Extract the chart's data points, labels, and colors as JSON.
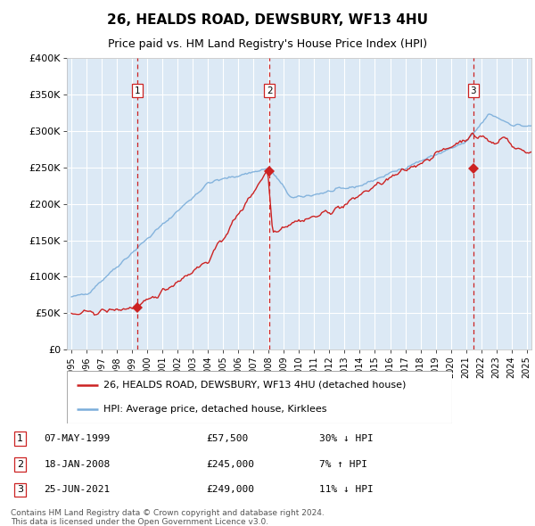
{
  "title": "26, HEALDS ROAD, DEWSBURY, WF13 4HU",
  "subtitle": "Price paid vs. HM Land Registry's House Price Index (HPI)",
  "hpi_label": "HPI: Average price, detached house, Kirklees",
  "price_label": "26, HEALDS ROAD, DEWSBURY, WF13 4HU (detached house)",
  "footer1": "Contains HM Land Registry data © Crown copyright and database right 2024.",
  "footer2": "This data is licensed under the Open Government Licence v3.0.",
  "sales": [
    {
      "num": 1,
      "date": "07-MAY-1999",
      "year": 1999.35,
      "price": 57500,
      "hpi_rel": "30% ↓ HPI"
    },
    {
      "num": 2,
      "date": "18-JAN-2008",
      "year": 2008.05,
      "price": 245000,
      "hpi_rel": "7% ↑ HPI"
    },
    {
      "num": 3,
      "date": "25-JUN-2021",
      "year": 2021.48,
      "price": 249000,
      "hpi_rel": "11% ↓ HPI"
    }
  ],
  "ylim": [
    0,
    400000
  ],
  "yticks": [
    0,
    50000,
    100000,
    150000,
    200000,
    250000,
    300000,
    350000,
    400000
  ],
  "xlim_start": 1994.7,
  "xlim_end": 2025.3,
  "hpi_color": "#7aadda",
  "price_color": "#cc2222",
  "bg_color": "#dce9f5",
  "plot_bg": "#f0f4fa",
  "grid_color": "#ffffff",
  "vline_color": "#cc2222",
  "marker_color": "#cc2222",
  "title_fontsize": 11,
  "subtitle_fontsize": 9
}
